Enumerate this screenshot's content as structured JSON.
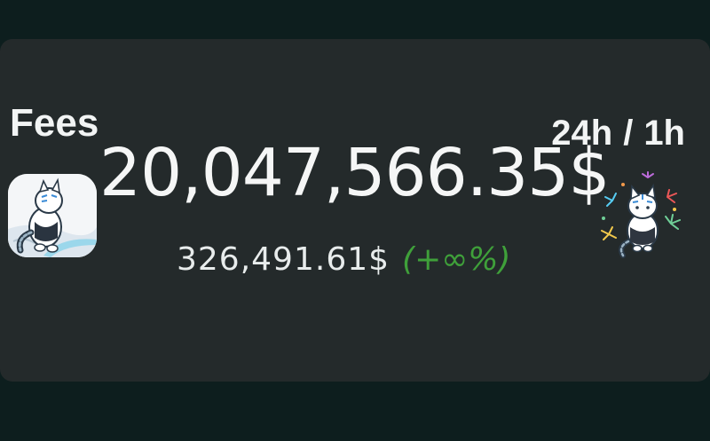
{
  "card": {
    "title": "Fees",
    "period": {
      "primary": "24h",
      "separator": "/",
      "secondary": "1h"
    },
    "main_value": "20,047,566.35$",
    "sub_value": "326,491.61$",
    "sub_change": "(+∞%)"
  },
  "icons": {
    "left_sticker": "cat-on-snow-sticker-icon",
    "right_sticker": "cat-fireworks-sticker-icon"
  },
  "colors": {
    "background": "#0d1e1e",
    "card": "#242a2b",
    "text": "#f2f4f4",
    "change_positive": "#3fa03a"
  }
}
